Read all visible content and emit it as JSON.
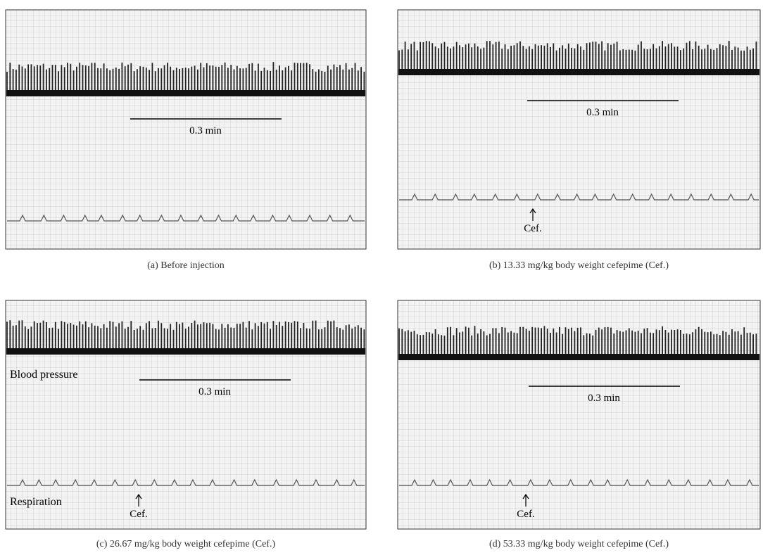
{
  "panels": [
    {
      "caption": "(a)  Before injection",
      "scale_label": "0.3 min"
    },
    {
      "caption": "(b)  13.33 mg/kg body weight cefepime (Cef.)",
      "scale_label": "0.3 min",
      "marker": "Cef."
    },
    {
      "caption": "(c)  26.67 mg/kg body weight cefepime (Cef.)",
      "scale_label": "0.3 min",
      "marker": "Cef.",
      "trace_labels": [
        "Blood pressure",
        "Respiration"
      ]
    },
    {
      "caption": "(d)  53.33 mg/kg body weight cefepime (Cef.)",
      "scale_label": "0.3 min",
      "marker": "Cef."
    }
  ]
}
